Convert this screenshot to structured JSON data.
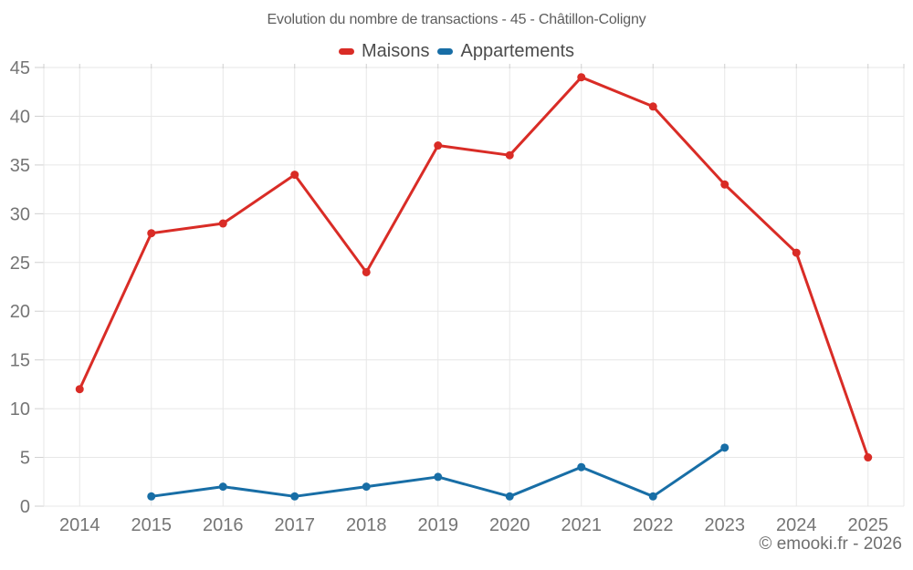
{
  "chart_data": {
    "type": "line",
    "title": "Evolution du nombre de transactions - 45 - Châtillon-Coligny",
    "categories": [
      "2014",
      "2015",
      "2016",
      "2017",
      "2018",
      "2019",
      "2020",
      "2021",
      "2022",
      "2023",
      "2024",
      "2025"
    ],
    "series": [
      {
        "name": "Maisons",
        "color": "#d92c26",
        "values": [
          12,
          28,
          29,
          34,
          24,
          37,
          36,
          44,
          41,
          33,
          26,
          5
        ]
      },
      {
        "name": "Appartements",
        "color": "#186ea6",
        "values": [
          null,
          1,
          2,
          1,
          2,
          3,
          1,
          4,
          1,
          6,
          null,
          null
        ]
      }
    ],
    "xlabel": "",
    "ylabel": "",
    "ylim": [
      0,
      45
    ],
    "ytick_step": 5,
    "grid": true,
    "legend_position": "top"
  },
  "footer": {
    "text": "© emooki.fr - 2026"
  },
  "colors": {
    "grid": "#e7e7e7",
    "tick": "#cfcfcf",
    "axis_label": "#757575"
  }
}
